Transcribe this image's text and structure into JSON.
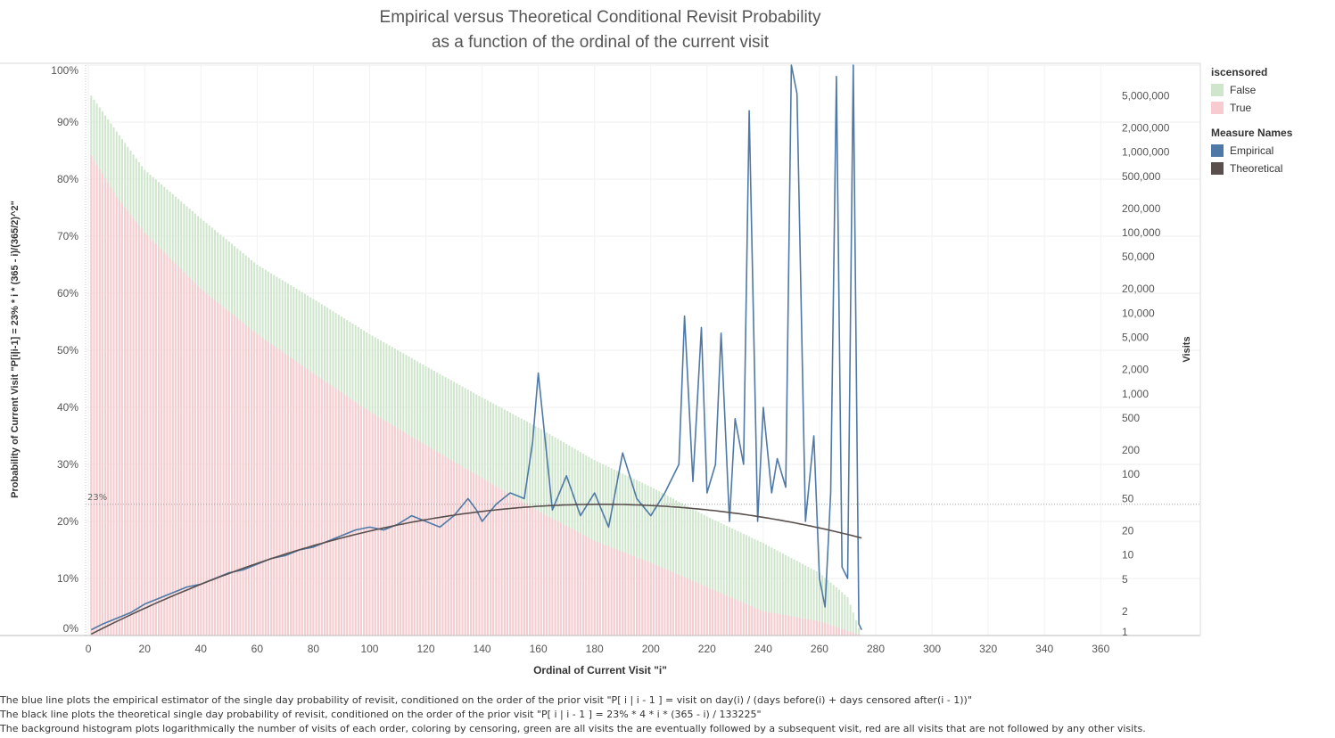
{
  "title_line1": "Empirical versus Theoretical Conditional Revisit Probability",
  "title_line2": "as a function of the ordinal of the current visit",
  "legend": {
    "censor_header": "iscensored",
    "censor_items": [
      {
        "label": "False",
        "color": "#cfe6cd"
      },
      {
        "label": "True",
        "color": "#f7cbd0"
      }
    ],
    "measure_header": "Measure Names",
    "measure_items": [
      {
        "label": "Empirical",
        "color": "#4e79a7"
      },
      {
        "label": "Theoretical",
        "color": "#59504e"
      }
    ]
  },
  "footnotes": [
    "The blue line plots the empirical estimator of the single day probability of revisit, conditioned on the order of the prior visit \"P[ i | i - 1 ] = visit on day(i) / (days before(i) + days censored after(i - 1))\"",
    "The black line plots the theoretical single day probability of revisit, conditioned on the order of the prior visit \"P[ i | i - 1 ] = 23% * 4 * i * (365 - i) / 133225\"",
    "The background histogram plots logarithmically the number of visits of each order, coloring by censoring, green are all visits the are eventually followed by a subsequent visit, red are all visits that are not followed by any other visits."
  ],
  "chart_data": {
    "type": "line",
    "xlabel": "Ordinal of Current Visit \"i\"",
    "ylabel": "Probability of Current Visit \"P[i|i-1] = 23% * i * (365 - i)/(365/2)^2\"",
    "y2label": "Visits",
    "xlim": [
      -1,
      365
    ],
    "ylim": [
      0,
      1
    ],
    "y2_scale": "log",
    "grid": true,
    "x_ticks": [
      "0",
      "20",
      "40",
      "60",
      "80",
      "100",
      "120",
      "140",
      "160",
      "180",
      "200",
      "220",
      "240",
      "260",
      "280",
      "300",
      "320",
      "340",
      "360"
    ],
    "y_ticks": [
      "0%",
      "10%",
      "20%",
      "30%",
      "40%",
      "50%",
      "60%",
      "70%",
      "80%",
      "90%",
      "100%"
    ],
    "y2_ticks": [
      {
        "label": "1",
        "value": 1
      },
      {
        "label": "2",
        "value": 2
      },
      {
        "label": "5",
        "value": 5
      },
      {
        "label": "10",
        "value": 10
      },
      {
        "label": "20",
        "value": 20
      },
      {
        "label": "50",
        "value": 50
      },
      {
        "label": "100",
        "value": 100
      },
      {
        "label": "200",
        "value": 200
      },
      {
        "label": "500",
        "value": 500
      },
      {
        "label": "1,000",
        "value": 1000
      },
      {
        "label": "2,000",
        "value": 2000
      },
      {
        "label": "5,000",
        "value": 5000
      },
      {
        "label": "10,000",
        "value": 10000
      },
      {
        "label": "20,000",
        "value": 20000
      },
      {
        "label": "50,000",
        "value": 50000
      },
      {
        "label": "100,000",
        "value": 100000
      },
      {
        "label": "200,000",
        "value": 200000
      },
      {
        "label": "500,000",
        "value": 500000
      },
      {
        "label": "1,000,000",
        "value": 1000000
      },
      {
        "label": "2,000,000",
        "value": 2000000
      },
      {
        "label": "5,000,000",
        "value": 5000000
      }
    ],
    "reference_line": {
      "value": 0.23,
      "label": "23%"
    },
    "histogram": {
      "x_range": [
        1,
        275
      ],
      "false_visits_anchor": [
        [
          1,
          5000000
        ],
        [
          5,
          3200000
        ],
        [
          10,
          1800000
        ],
        [
          20,
          600000
        ],
        [
          40,
          150000
        ],
        [
          60,
          40000
        ],
        [
          80,
          15000
        ],
        [
          100,
          5500
        ],
        [
          120,
          2200
        ],
        [
          140,
          900
        ],
        [
          160,
          380
        ],
        [
          180,
          150
        ],
        [
          200,
          70
        ],
        [
          220,
          30
        ],
        [
          240,
          14
        ],
        [
          260,
          6
        ],
        [
          270,
          3
        ],
        [
          275,
          1
        ]
      ],
      "true_visits_anchor": [
        [
          1,
          900000
        ],
        [
          10,
          280000
        ],
        [
          20,
          100000
        ],
        [
          40,
          20000
        ],
        [
          60,
          5500
        ],
        [
          80,
          1800
        ],
        [
          100,
          600
        ],
        [
          120,
          230
        ],
        [
          140,
          90
        ],
        [
          160,
          35
        ],
        [
          180,
          15
        ],
        [
          200,
          8
        ],
        [
          220,
          4
        ],
        [
          240,
          2
        ],
        [
          260,
          1.5
        ],
        [
          275,
          1
        ]
      ]
    },
    "series": [
      {
        "name": "Empirical",
        "x": [
          1,
          5,
          10,
          15,
          20,
          25,
          30,
          35,
          40,
          45,
          50,
          55,
          60,
          65,
          70,
          75,
          80,
          85,
          90,
          95,
          100,
          105,
          110,
          115,
          120,
          125,
          130,
          135,
          138,
          140,
          145,
          150,
          155,
          158,
          160,
          165,
          170,
          175,
          180,
          185,
          190,
          195,
          200,
          205,
          210,
          212,
          215,
          218,
          220,
          223,
          225,
          228,
          230,
          233,
          235,
          238,
          240,
          243,
          245,
          248,
          250,
          252,
          255,
          258,
          260,
          262,
          264,
          266,
          268,
          270,
          272,
          274,
          275
        ],
        "y": [
          0.01,
          0.02,
          0.03,
          0.04,
          0.055,
          0.065,
          0.075,
          0.085,
          0.09,
          0.1,
          0.11,
          0.115,
          0.125,
          0.135,
          0.14,
          0.15,
          0.155,
          0.165,
          0.175,
          0.185,
          0.19,
          0.185,
          0.195,
          0.21,
          0.2,
          0.19,
          0.21,
          0.24,
          0.22,
          0.2,
          0.23,
          0.25,
          0.24,
          0.34,
          0.46,
          0.22,
          0.28,
          0.21,
          0.25,
          0.19,
          0.32,
          0.24,
          0.21,
          0.25,
          0.3,
          0.56,
          0.27,
          0.54,
          0.25,
          0.3,
          0.53,
          0.2,
          0.38,
          0.3,
          0.92,
          0.2,
          0.4,
          0.25,
          0.31,
          0.26,
          1.0,
          0.95,
          0.2,
          0.35,
          0.1,
          0.05,
          0.25,
          0.98,
          0.12,
          0.1,
          1.0,
          0.02,
          0.01
        ]
      },
      {
        "name": "Theoretical",
        "formula": "P[ i | i - 1 ] = 23% * 4 * i * (365 - i) / 133225",
        "x_range": [
          1,
          275
        ]
      }
    ]
  }
}
